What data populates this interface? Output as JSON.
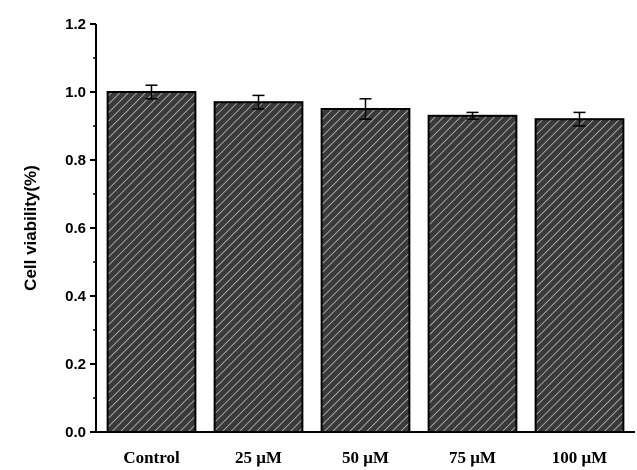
{
  "chart_data": {
    "type": "bar",
    "title": "",
    "xlabel": "",
    "ylabel": "Cell viability(%)",
    "categories": [
      "Control",
      "25 μM",
      "50 μM",
      "75 μM",
      "100 μM"
    ],
    "values": [
      1.0,
      0.97,
      0.95,
      0.93,
      0.92
    ],
    "errors": [
      0.02,
      0.02,
      0.03,
      0.01,
      0.02
    ],
    "ylim": [
      0.0,
      1.2
    ],
    "yticks": [
      "0.0",
      "0.2",
      "0.4",
      "0.6",
      "0.8",
      "1.0",
      "1.2"
    ],
    "grid": false,
    "legend": "none",
    "bar_color": "#3a3a3a",
    "hatch_color": "#cfcfcf"
  }
}
